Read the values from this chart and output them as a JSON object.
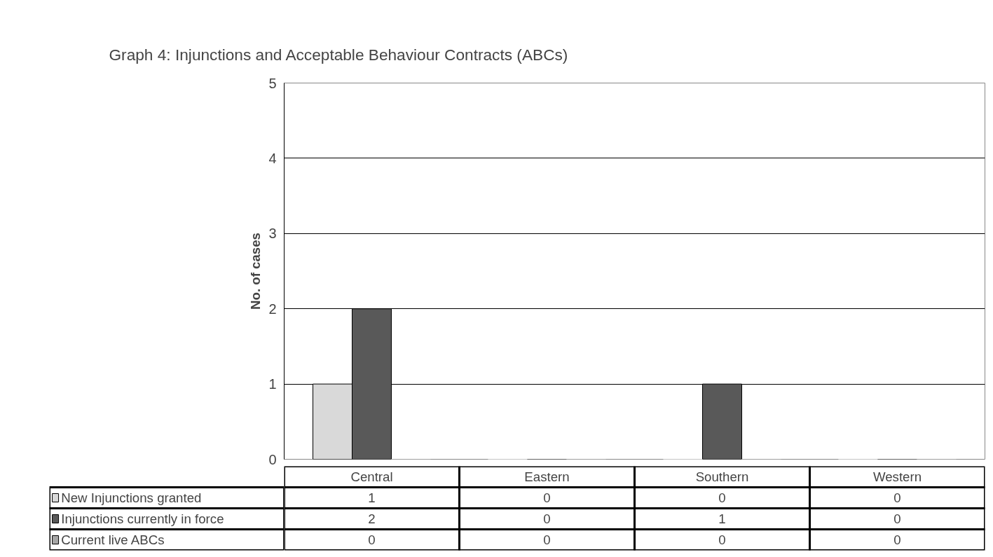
{
  "chart_data": {
    "type": "bar",
    "title": "Graph 4: Injunctions and  Acceptable Behaviour Contracts (ABCs)",
    "ylabel": "No. of cases",
    "categories": [
      "Central",
      "Eastern",
      "Southern",
      "Western"
    ],
    "series": [
      {
        "name": "New Injunctions granted",
        "color": "#d9d9d9",
        "values": [
          1,
          0,
          0,
          0
        ]
      },
      {
        "name": "Injunctions currently in force",
        "color": "#595959",
        "values": [
          2,
          0,
          1,
          0
        ]
      },
      {
        "name": "Current live ABCs",
        "color": "#a6a6a6",
        "values": [
          0,
          0,
          0,
          0
        ]
      }
    ],
    "ylim": [
      0,
      5
    ],
    "yticks": [
      0,
      1,
      2,
      3,
      4,
      5
    ],
    "grid": "y",
    "legend": "bottom",
    "data_labels": true
  }
}
